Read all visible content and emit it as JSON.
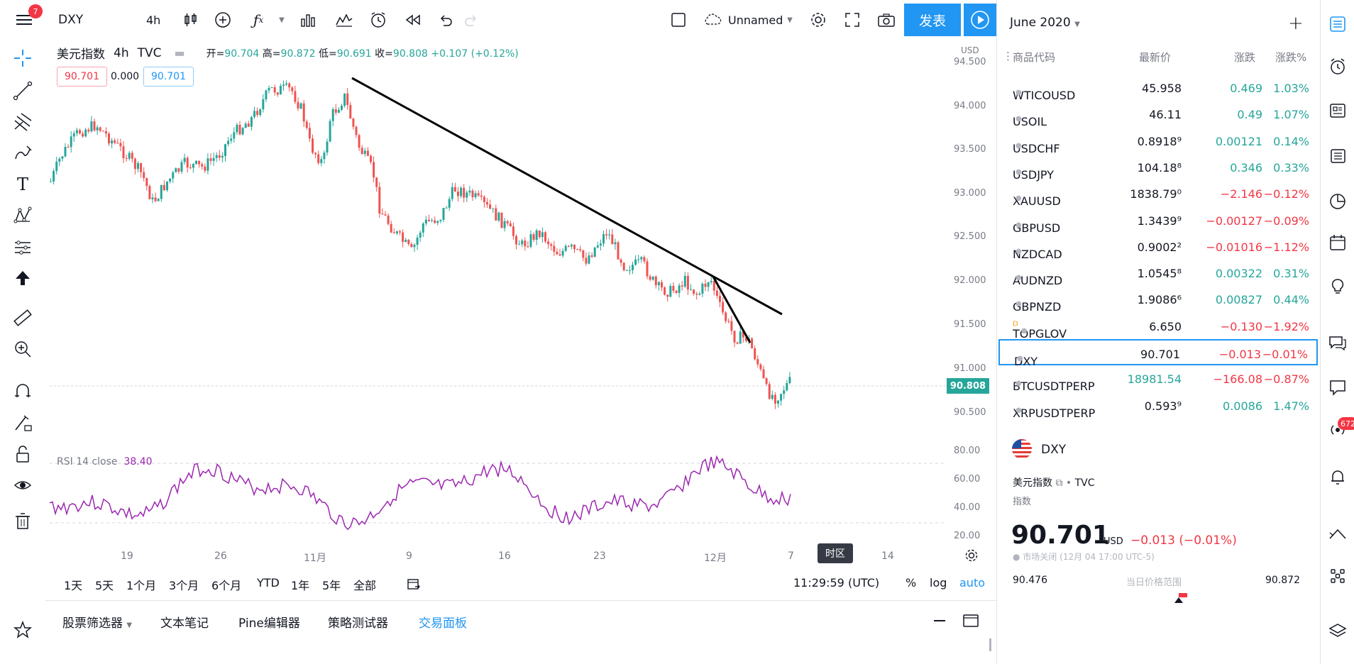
{
  "topbar": {
    "menu_badge": "7",
    "symbol": "DXY",
    "interval": "4h",
    "layout_name": "Unnamed",
    "publish_label": "发表"
  },
  "legend": {
    "name": "美元指数",
    "interval": "4h",
    "exchange": "TVC",
    "open_label": "开=",
    "open": "90.704",
    "high_label": "高=",
    "high": "90.872",
    "low_label": "低=",
    "low": "90.691",
    "close_label": "收=",
    "close": "90.808",
    "change": "+0.107 (+0.12%)",
    "bid": "90.701",
    "spread": "0.000",
    "ask": "90.701"
  },
  "price_axis": {
    "currency": "USD",
    "ticks": [
      "94.500",
      "94.000",
      "93.500",
      "93.000",
      "92.500",
      "92.000",
      "91.500",
      "91.000",
      "90.500"
    ],
    "last_price": "90.808"
  },
  "rsi": {
    "label": "RSI 14 close",
    "value": "38.40",
    "ticks": [
      "80.00",
      "60.00",
      "40.00",
      "20.00"
    ]
  },
  "date_axis": {
    "ticks": [
      "19",
      "26",
      "11月",
      "9",
      "16",
      "23",
      "12月",
      "7",
      "14"
    ],
    "timezone_tooltip": "时区"
  },
  "range_bar": {
    "ranges": [
      "1天",
      "5天",
      "1个月",
      "3个月",
      "6个月",
      "YTD",
      "1年",
      "5年",
      "全部"
    ],
    "clock": "11:29:59 (UTC)",
    "percent": "%",
    "log": "log",
    "auto": "auto"
  },
  "bottom_tabs": [
    "股票筛选器",
    "文本笔记",
    "Pine编辑器",
    "策略测试器",
    "交易面板"
  ],
  "watchlist": {
    "title": "June 2020",
    "columns": {
      "symbol": "商品代码",
      "last": "最新价",
      "change": "涨跌",
      "change_pct": "涨跌%"
    },
    "rows": [
      {
        "symbol": "WTICOUSD",
        "last": "45.958",
        "change": "0.469",
        "pct": "1.03%",
        "dir": "pos"
      },
      {
        "symbol": "USOIL",
        "last": "46.11",
        "change": "0.49",
        "pct": "1.07%",
        "dir": "pos"
      },
      {
        "symbol": "USDCHF",
        "last": "0.8918⁹",
        "change": "0.00121",
        "pct": "0.14%",
        "dir": "pos"
      },
      {
        "symbol": "USDJPY",
        "last": "104.18⁸",
        "change": "0.346",
        "pct": "0.33%",
        "dir": "pos"
      },
      {
        "symbol": "XAUUSD",
        "last": "1838.79⁰",
        "change": "−2.146",
        "pct": "−0.12%",
        "dir": "neg"
      },
      {
        "symbol": "GBPUSD",
        "last": "1.3439⁹",
        "change": "−0.00127",
        "pct": "−0.09%",
        "dir": "neg"
      },
      {
        "symbol": "NZDCAD",
        "last": "0.9002²",
        "change": "−0.01016",
        "pct": "−1.12%",
        "dir": "neg"
      },
      {
        "symbol": "AUDNZD",
        "last": "1.0545⁸",
        "change": "0.00322",
        "pct": "0.31%",
        "dir": "pos"
      },
      {
        "symbol": "GBPNZD",
        "last": "1.9086⁶",
        "change": "0.00827",
        "pct": "0.44%",
        "dir": "pos"
      },
      {
        "symbol": "TOPGLOV",
        "last": "6.650",
        "change": "−0.130",
        "pct": "−1.92%",
        "dir": "neg"
      },
      {
        "symbol": "DXY",
        "last": "90.701",
        "change": "−0.013",
        "pct": "−0.01%",
        "dir": "neg"
      },
      {
        "symbol": "BTCUSDTPERP",
        "last": "18981.54",
        "change": "−166.08",
        "pct": "−0.87%",
        "dir": "neg"
      },
      {
        "symbol": "XRPUSDTPERP",
        "last": "0.593⁹",
        "change": "0.0086",
        "pct": "1.47%",
        "dir": "pos"
      }
    ],
    "topglov_flag": "D"
  },
  "details": {
    "symbol": "DXY",
    "name": "美元指数",
    "exchange": "TVC",
    "type": "指数",
    "price": "90.701",
    "currency": "USD",
    "change": "−0.013 (−0.01%)",
    "market_status": "市场关闭",
    "market_time": "(12月 04 17:00 UTC-5)",
    "range_low": "90.476",
    "range_label": "当日价格范围",
    "range_high": "90.872"
  },
  "rightbar": {
    "notification_badge": "672"
  },
  "colors": {
    "up": "#26a69a",
    "down": "#ef5350",
    "accent": "#2196f3",
    "rsi": "#9c27b0"
  }
}
